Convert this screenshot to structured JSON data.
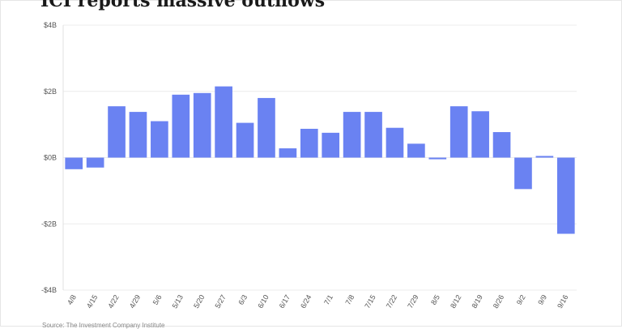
{
  "chart_data": {
    "type": "bar",
    "title": "ICI reports massive outflows",
    "xlabel": "",
    "ylabel": "",
    "ylim": [
      -4,
      4
    ],
    "y_ticks": [
      4,
      2,
      0,
      -2,
      -4
    ],
    "y_tick_labels": [
      "$4B",
      "$2B",
      "$0B",
      "-$2B",
      "-$4B"
    ],
    "categories": [
      "4/8",
      "4/15",
      "4/22",
      "4/29",
      "5/6",
      "5/13",
      "5/20",
      "5/27",
      "6/3",
      "6/10",
      "6/17",
      "6/24",
      "7/1",
      "7/8",
      "7/15",
      "7/22",
      "7/29",
      "8/5",
      "8/12",
      "8/19",
      "8/26",
      "9/2",
      "9/9",
      "9/16"
    ],
    "values": [
      -0.35,
      -0.3,
      1.55,
      1.38,
      1.1,
      1.9,
      1.95,
      2.15,
      1.05,
      1.8,
      0.28,
      0.87,
      0.75,
      1.38,
      1.38,
      0.9,
      0.42,
      -0.05,
      1.55,
      1.4,
      0.77,
      -0.95,
      0.05,
      -2.3
    ],
    "bar_color": "#6a82f2",
    "grid": true,
    "legend": "none"
  },
  "source": "Source: The Investment Company Institute"
}
